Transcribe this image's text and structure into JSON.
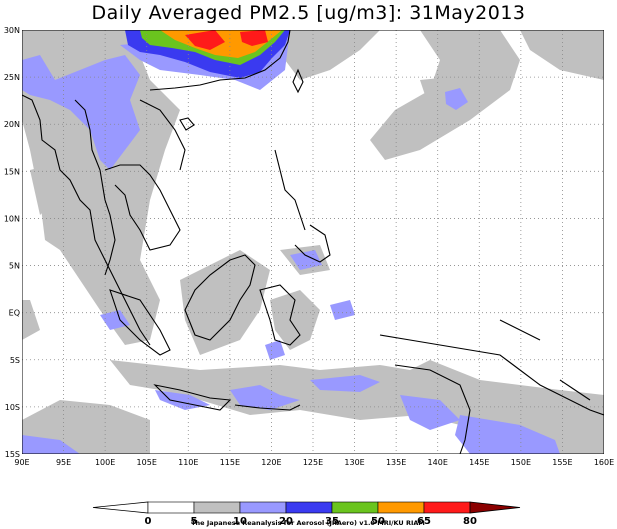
{
  "title": "Daily Averaged PM2.5 [ug/m3]: 31May2013",
  "map": {
    "lon_range": [
      90,
      160
    ],
    "lat_range": [
      -15,
      30
    ],
    "lon_labels": [
      "90E",
      "95E",
      "100E",
      "105E",
      "110E",
      "115E",
      "120E",
      "125E",
      "130E",
      "135E",
      "140E",
      "145E",
      "150E",
      "155E",
      "160E"
    ],
    "lat_labels": [
      "30N",
      "25N",
      "20N",
      "15N",
      "10N",
      "5N",
      "EQ",
      "5S",
      "10S",
      "15S"
    ],
    "gridlines": "dotted"
  },
  "colorbar": {
    "levels": [
      "0",
      "5",
      "10",
      "20",
      "35",
      "50",
      "65",
      "80"
    ],
    "colors": [
      "#ffffff",
      "#ffffff",
      "#c0c0c0",
      "#9999ff",
      "#3a3af0",
      "#6ac41e",
      "#ff9900",
      "#ff1a1a",
      "#8b0000"
    ]
  },
  "credit": "The Japanese Reanalysis for Aerosol (JRAero) v1.0 MRI/KU RIAM"
}
